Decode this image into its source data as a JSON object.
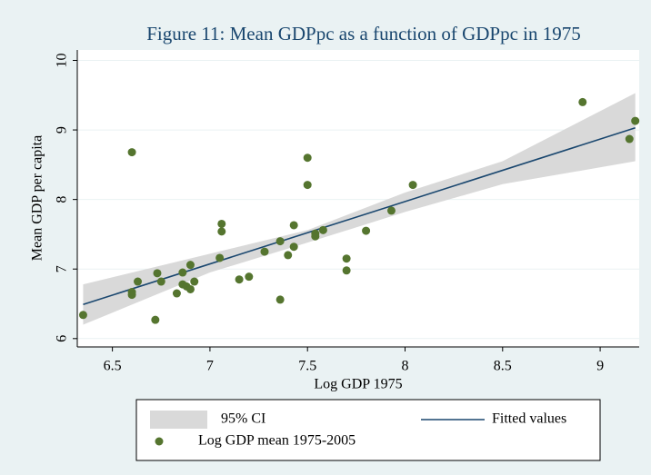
{
  "chart_data": {
    "type": "scatter",
    "title": "Figure 11: Mean GDPpc as a function of GDPpc in 1975",
    "x_label": "Log GDP 1975",
    "y_label": "Mean GDP per capita",
    "xlim": [
      6.32,
      9.2
    ],
    "ylim": [
      5.88,
      10.15
    ],
    "xticks": [
      6.5,
      7,
      7.5,
      8,
      8.5,
      9
    ],
    "yticks": [
      6,
      7,
      8,
      9,
      10
    ],
    "grid": true,
    "series": [
      {
        "name": "95% CI",
        "type": "band",
        "color": "#d9d9d9",
        "x": [
          6.35,
          7.0,
          7.5,
          8.0,
          8.5,
          9.18
        ],
        "lower": [
          6.2,
          6.95,
          7.38,
          7.82,
          8.22,
          8.55
        ],
        "upper": [
          6.78,
          7.22,
          7.56,
          8.1,
          8.55,
          9.53
        ]
      },
      {
        "name": "Fitted values",
        "type": "line",
        "color": "#1a476f",
        "x": [
          6.35,
          9.18
        ],
        "values": [
          6.49,
          9.03
        ]
      },
      {
        "name": "Log GDP mean 1975-2005",
        "type": "scatter",
        "color": "#55752f",
        "x": [
          6.35,
          6.6,
          6.6,
          6.6,
          6.63,
          6.73,
          6.72,
          6.75,
          6.83,
          6.86,
          6.86,
          6.88,
          6.9,
          6.9,
          6.92,
          7.05,
          7.06,
          7.06,
          7.15,
          7.2,
          7.28,
          7.36,
          7.36,
          7.4,
          7.43,
          7.43,
          7.5,
          7.5,
          7.54,
          7.54,
          7.58,
          7.7,
          7.7,
          7.8,
          7.93,
          8.04,
          8.91,
          9.15,
          9.18
        ],
        "values": [
          6.34,
          8.68,
          6.67,
          6.63,
          6.82,
          6.94,
          6.27,
          6.82,
          6.65,
          6.95,
          6.78,
          6.75,
          6.71,
          7.06,
          6.82,
          7.16,
          7.65,
          7.54,
          6.85,
          6.89,
          7.25,
          6.56,
          7.4,
          7.2,
          7.32,
          7.63,
          8.6,
          8.21,
          7.51,
          7.47,
          7.56,
          7.15,
          6.98,
          7.55,
          7.84,
          8.21,
          9.4,
          8.87,
          9.13
        ]
      }
    ]
  }
}
